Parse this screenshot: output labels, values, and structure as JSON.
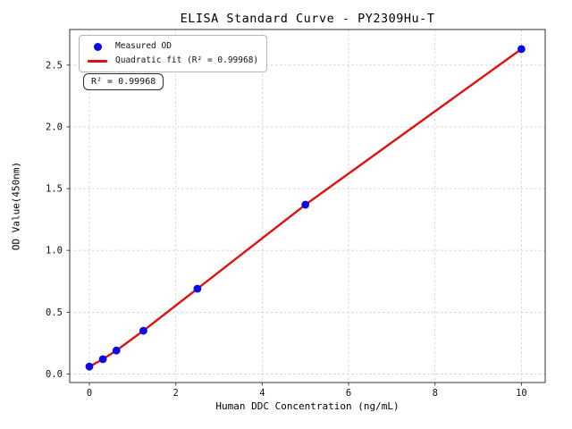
{
  "figure": {
    "background": "#ffffff",
    "annotation": "R² = 0.99968"
  },
  "chart_data": {
    "type": "scatter",
    "title": "ELISA Standard Curve - PY2309Hu-T",
    "xlabel": "Human DDC Concentration (ng/mL)",
    "ylabel": "OD Value(450nm)",
    "xlim": [
      -0.455,
      10.55
    ],
    "ylim": [
      -0.069,
      2.788
    ],
    "xticks": [
      0,
      2,
      4,
      6,
      8,
      10
    ],
    "xtick_labels": [
      "0",
      "2",
      "4",
      "6",
      "8",
      "10"
    ],
    "yticks": [
      0,
      0.5,
      1.0,
      1.5,
      2.0,
      2.5
    ],
    "ytick_labels": [
      "0.0",
      "0.5",
      "1.0",
      "1.5",
      "2.0",
      "2.5"
    ],
    "grid": true,
    "grid_style": {
      "color": "#cccccc",
      "dash": "2.5 2.5"
    },
    "spine_color": "#444444",
    "legend": {
      "position": "upper-left",
      "entries": [
        {
          "label": "Measured OD",
          "marker": "dot",
          "color": "#0a0ae6"
        },
        {
          "label": "Quadratic fit (R² = 0.99968)",
          "marker": "line",
          "color": "#e01010"
        }
      ]
    },
    "annotation": "R² = 0.99968",
    "r_squared": 0.99968,
    "series": [
      {
        "name": "Measured OD",
        "type": "scatter",
        "color": "#0a0ae6",
        "marker_radius": 4.4,
        "x": [
          0,
          0.313,
          0.625,
          1.25,
          2.5,
          5,
          10
        ],
        "y": [
          0.06,
          0.12,
          0.19,
          0.35,
          0.69,
          1.37,
          2.63
        ]
      },
      {
        "name": "Quadratic fit",
        "type": "line",
        "color": "#e01010",
        "line_width": 2.4,
        "x": [
          0,
          0.313,
          0.625,
          1.25,
          2.5,
          5,
          10
        ],
        "y": [
          0.06,
          0.12,
          0.19,
          0.35,
          0.69,
          1.37,
          2.63
        ]
      }
    ]
  }
}
